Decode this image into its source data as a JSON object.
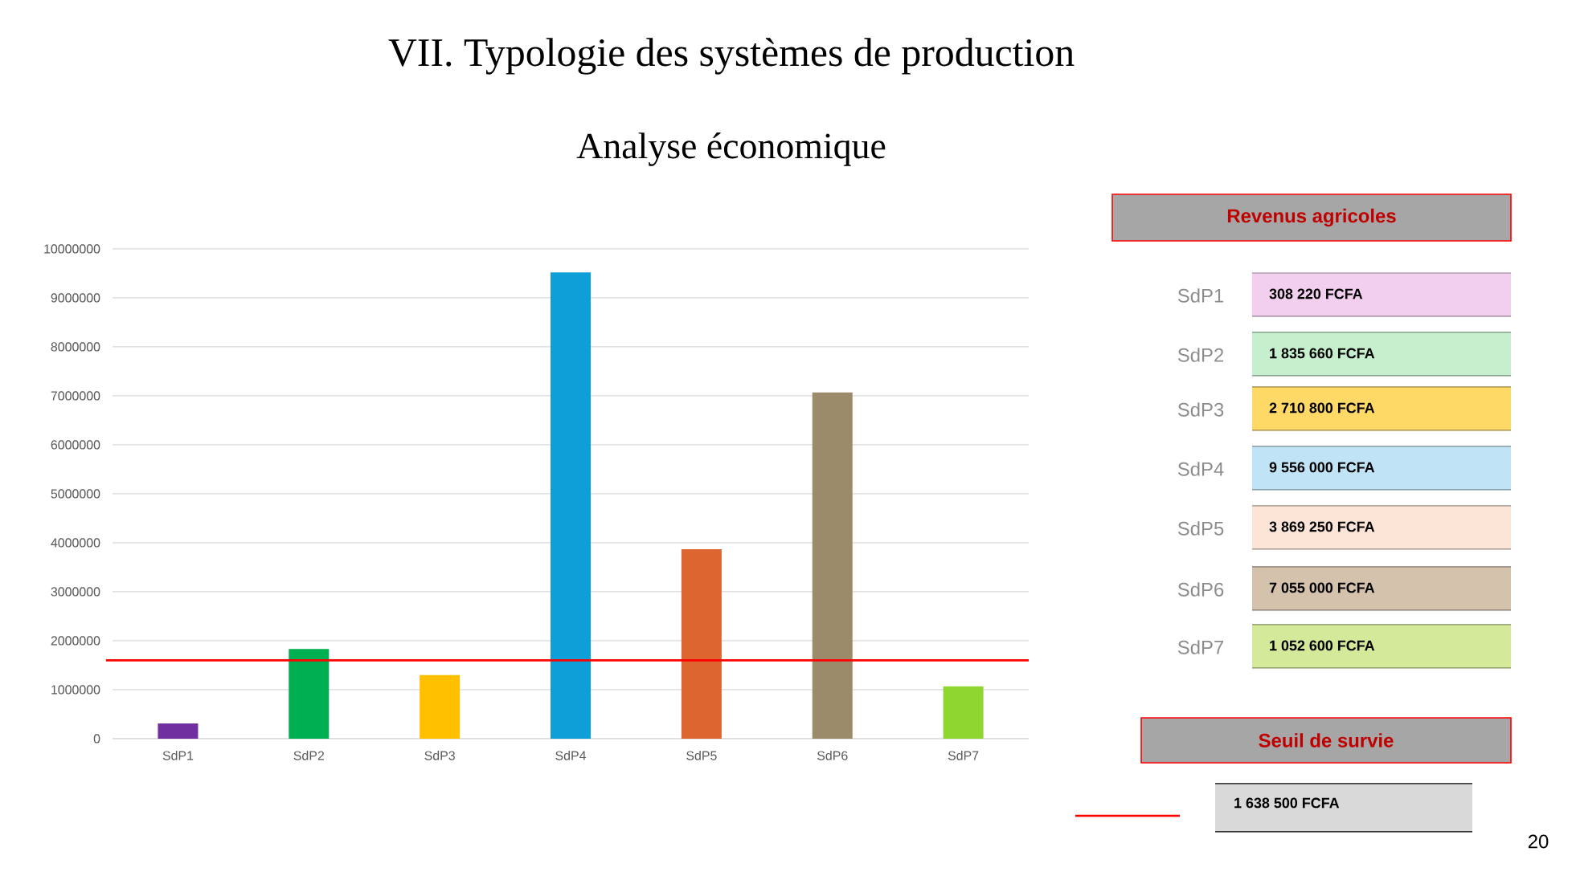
{
  "chart_data": [
    {
      "type": "bar",
      "title": "VII. Typologie des systèmes de production",
      "subtitle": "Analyse économique",
      "categories": [
        "SdP1",
        "SdP2",
        "SdP3",
        "SdP4",
        "SdP5",
        "SdP6",
        "SdP7"
      ],
      "values": [
        310000,
        1830000,
        1300000,
        9520000,
        3870000,
        7070000,
        1070000
      ],
      "colors": [
        "#7030a0",
        "#00b050",
        "#ffc000",
        "#0e9fd8",
        "#dc6530",
        "#9c8b6a",
        "#8fd630"
      ],
      "ylim": [
        0,
        10000000
      ],
      "yticks": [
        0,
        1000000,
        2000000,
        3000000,
        4000000,
        5000000,
        6000000,
        7000000,
        8000000,
        9000000,
        10000000
      ],
      "grid": "y",
      "ref_lines": [
        {
          "axis": "y",
          "value": 1600000,
          "color": "#ff0000"
        }
      ]
    },
    {
      "type": "other",
      "title": "Revenus agricoles",
      "categories": [
        "SdP1",
        "SdP2",
        "SdP3",
        "SdP4",
        "SdP5",
        "SdP6",
        "SdP7"
      ],
      "value_labels": [
        "308 220 FCFA",
        "1 835 660 FCFA",
        "2 710 800 FCFA",
        "9 556 000 FCFA",
        "3 869 250 FCFA",
        "7 055 000 FCFA",
        "1 052 600 FCFA"
      ],
      "colors": [
        "#f2cfee",
        "#c6efce",
        "#ffd966",
        "#c0e4f5",
        "#fce4d6",
        "#d5c2ad",
        "#d4e99a"
      ],
      "annotations": [
        "Seuil de survie",
        "1 638 500 FCFA",
        "20"
      ]
    }
  ]
}
